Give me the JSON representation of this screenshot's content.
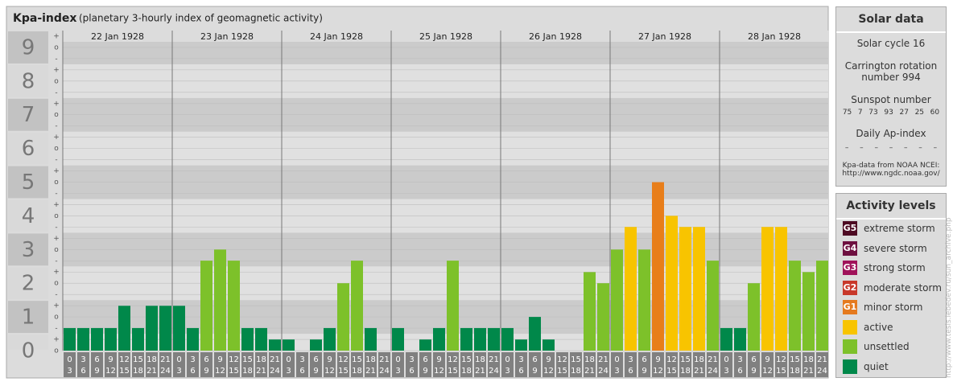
{
  "chart_data": {
    "type": "bar",
    "title": "Kpa-index",
    "subtitle": "(planetary 3-hourly index of geomagnetic activity)",
    "categories": [
      "22 Jan 1928",
      "23 Jan 1928",
      "24 Jan 1928",
      "25 Jan 1928",
      "26 Jan 1928",
      "27 Jan 1928",
      "28 Jan 1928"
    ],
    "hours": [
      [
        0,
        3
      ],
      [
        3,
        6
      ],
      [
        6,
        9
      ],
      [
        9,
        12
      ],
      [
        12,
        15
      ],
      [
        15,
        18
      ],
      [
        18,
        21
      ],
      [
        21,
        24
      ]
    ],
    "values": [
      [
        0.67,
        0.67,
        0.67,
        0.67,
        1.33,
        0.67,
        1.33,
        1.33
      ],
      [
        1.33,
        0.67,
        2.67,
        3,
        2.67,
        0.67,
        0.67,
        0.33
      ],
      [
        0.33,
        0,
        0.33,
        0.67,
        2,
        2.67,
        0.67,
        0
      ],
      [
        0.67,
        0,
        0.33,
        0.67,
        2.67,
        0.67,
        0.67,
        0.67
      ],
      [
        0.67,
        0.33,
        1,
        0.33,
        0,
        0,
        2.33,
        2
      ],
      [
        3,
        3.67,
        3,
        5,
        4,
        3.67,
        3.67,
        2.67
      ],
      [
        0.67,
        0.67,
        2,
        3.67,
        3.67,
        2.67,
        2.33,
        2.67
      ]
    ],
    "colors": [
      [
        "#00884a",
        "#00884a",
        "#00884a",
        "#00884a",
        "#00884a",
        "#00884a",
        "#00884a",
        "#00884a"
      ],
      [
        "#00884a",
        "#00884a",
        "#7dc12a",
        "#7dc12a",
        "#7dc12a",
        "#00884a",
        "#00884a",
        "#00884a"
      ],
      [
        "#00884a",
        "#00884a",
        "#00884a",
        "#00884a",
        "#7dc12a",
        "#7dc12a",
        "#00884a",
        "#00884a"
      ],
      [
        "#00884a",
        "#00884a",
        "#00884a",
        "#00884a",
        "#7dc12a",
        "#00884a",
        "#00884a",
        "#00884a"
      ],
      [
        "#00884a",
        "#00884a",
        "#00884a",
        "#00884a",
        "#00884a",
        "#00884a",
        "#7dc12a",
        "#7dc12a"
      ],
      [
        "#7dc12a",
        "#f8c400",
        "#7dc12a",
        "#e87e1a",
        "#f8c400",
        "#f8c400",
        "#f8c400",
        "#7dc12a"
      ],
      [
        "#00884a",
        "#00884a",
        "#7dc12a",
        "#f8c400",
        "#f8c400",
        "#7dc12a",
        "#7dc12a",
        "#7dc12a"
      ]
    ],
    "ylim": [
      0,
      9.5
    ],
    "yticks": [
      0,
      1,
      2,
      3,
      4,
      5,
      6,
      7,
      8,
      9
    ],
    "minor_labels": [
      "-",
      "o",
      "+"
    ]
  },
  "solar_data": {
    "title": "Solar data",
    "solar_cycle": "Solar cycle 16",
    "carrington": "Carrington rotation number 994",
    "sunspot_title": "Sunspot number",
    "sunspot_numbers": [
      75,
      7,
      73,
      93,
      27,
      25,
      60
    ],
    "ap_title": "Daily Ap-index",
    "ap_values": [
      "–",
      "–",
      "–",
      "–",
      "–",
      "–",
      "–"
    ],
    "source": "Kpa-data from NOAA NCEI:",
    "source_url": "http://www.ngdc.noaa.gov/"
  },
  "activity_levels": {
    "title": "Activity levels",
    "levels": [
      {
        "code": "G5",
        "label": "extreme storm",
        "color": "#4d0a22"
      },
      {
        "code": "G4",
        "label": "severe storm",
        "color": "#6e1040"
      },
      {
        "code": "G3",
        "label": "strong storm",
        "color": "#a0125a"
      },
      {
        "code": "G2",
        "label": "moderate storm",
        "color": "#c8382a"
      },
      {
        "code": "G1",
        "label": "minor storm",
        "color": "#e57a1e"
      },
      {
        "label": "active",
        "color": "#f8c400"
      },
      {
        "label": "unsettled",
        "color": "#7dc12a"
      },
      {
        "label": "quiet",
        "color": "#00884a"
      }
    ]
  },
  "credit": "http://www.tesis.lebedev.ru/sun_archive.php"
}
